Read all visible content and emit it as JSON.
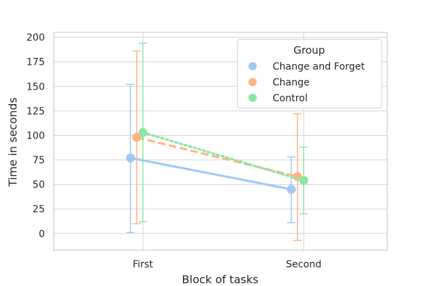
{
  "chart_data": {
    "type": "line",
    "xlabel": "Block of tasks",
    "ylabel": "Time in seconds",
    "categories": [
      "First",
      "Second"
    ],
    "ylim": [
      -17,
      205
    ],
    "yticks": [
      0,
      25,
      50,
      75,
      100,
      125,
      150,
      175,
      200
    ],
    "grid": true,
    "legend": {
      "title": "Group",
      "placement": "top-right"
    },
    "series": [
      {
        "name": "Change and Forget",
        "color": "#a1c9f4",
        "line_style": "solid",
        "values": [
          77,
          45
        ],
        "err_low": [
          1,
          11
        ],
        "err_high": [
          152,
          78
        ]
      },
      {
        "name": "Change",
        "color": "#ffb482",
        "line_style": "dashed",
        "values": [
          98,
          58
        ],
        "err_low": [
          10,
          -7
        ],
        "err_high": [
          186,
          122
        ]
      },
      {
        "name": "Control",
        "color": "#8de5a1",
        "line_style": "dotted",
        "values": [
          103,
          54
        ],
        "err_low": [
          12,
          20
        ],
        "err_high": [
          194,
          88
        ]
      }
    ]
  }
}
